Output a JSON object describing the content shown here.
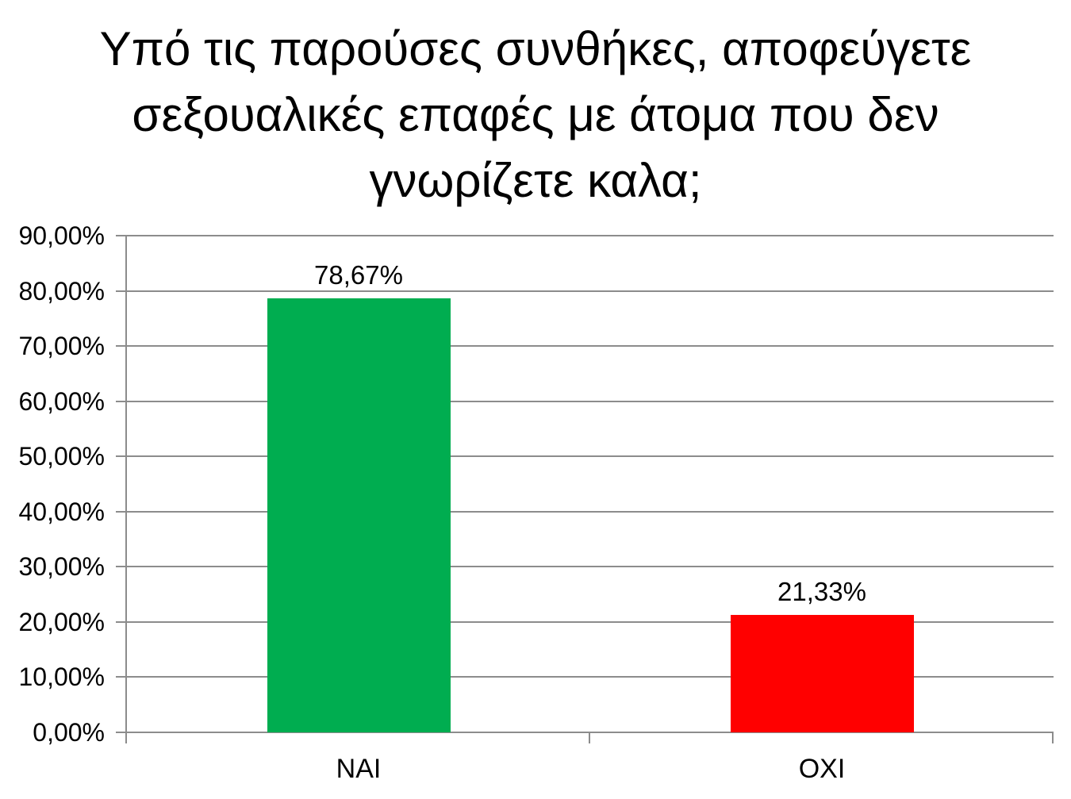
{
  "chart_data": {
    "type": "bar",
    "title": "Υπό τις παρούσες συνθήκες, αποφεύγετε σεξουαλικές επαφές με άτομα που δεν γνωρίζετε καλα;",
    "title_lines": [
      "Υπό τις παρούσες συνθήκες, αποφεύγετε",
      "σεξουαλικές επαφές με άτομα που δεν",
      "γνωρίζετε καλα;"
    ],
    "categories": [
      "ΝΑΙ",
      "ΟΧΙ"
    ],
    "values": [
      78.67,
      21.33
    ],
    "data_labels": [
      "78,67%",
      "21,33%"
    ],
    "bar_colors": [
      "#00AD50",
      "#FF0000"
    ],
    "xlabel": "",
    "ylabel": "",
    "ylim": [
      0,
      90
    ],
    "ytick_step": 10,
    "ytick_labels": [
      "0,00%",
      "10,00%",
      "20,00%",
      "30,00%",
      "40,00%",
      "50,00%",
      "60,00%",
      "70,00%",
      "80,00%",
      "90,00%"
    ],
    "grid": true,
    "legend": false,
    "colors": {
      "grid": "#8C8C8C",
      "axis": "#8C8C8C",
      "text": "#000000",
      "background": "#FFFFFF"
    }
  }
}
